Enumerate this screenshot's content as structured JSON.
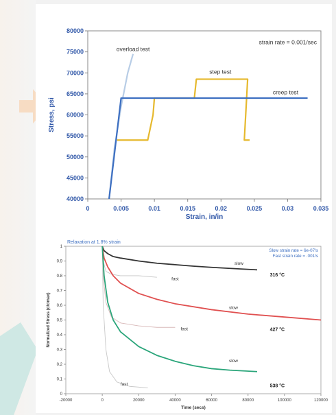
{
  "chart_data": [
    {
      "type": "line",
      "title": "",
      "xlabel": "Strain, in/in",
      "ylabel": "Stress, psi",
      "xlim": [
        0,
        0.035
      ],
      "ylim": [
        40000,
        80000
      ],
      "x_ticks": [
        "0",
        "0.005",
        "0.01",
        "0.015",
        "0.02",
        "0.025",
        "0.03",
        "0.035"
      ],
      "y_ticks": [
        "40000",
        "45000",
        "50000",
        "55000",
        "60000",
        "65000",
        "70000",
        "75000",
        "80000"
      ],
      "grid": false,
      "annotation": "strain rate = 0.001/sec",
      "series": [
        {
          "name": "overload test",
          "color": "#b8cde6",
          "x": [
            0.0032,
            0.004,
            0.005,
            0.006,
            0.0068
          ],
          "y": [
            40000,
            52000,
            62000,
            70000,
            74500
          ]
        },
        {
          "name": "step test",
          "color": "#e6b92e",
          "x": [
            0.0044,
            0.009,
            0.0098,
            0.01,
            0.016,
            0.0163,
            0.024,
            0.0235,
            0.0243
          ],
          "y": [
            54000,
            54000,
            60000,
            64000,
            64000,
            68500,
            68500,
            54000,
            54000
          ]
        },
        {
          "name": "creep test",
          "color": "#3d6fc1",
          "x": [
            0.0032,
            0.005,
            0.033
          ],
          "y": [
            40000,
            64000,
            64000
          ]
        }
      ]
    },
    {
      "type": "line",
      "title": "Relaxation at 1.8% strain",
      "xlabel": "Time (secs)",
      "ylabel": "Normalized Stress (σ/σmax)",
      "xlim": [
        -20000,
        120000
      ],
      "ylim": [
        0,
        1
      ],
      "x_ticks": [
        "-20000",
        "0",
        "20000",
        "40000",
        "60000",
        "80000",
        "100000",
        "120000"
      ],
      "y_ticks": [
        "0",
        "0.1",
        "0.2",
        "0.3",
        "0.4",
        "0.5",
        "0.6",
        "0.7",
        "0.8",
        "0.9",
        "1"
      ],
      "grid": false,
      "legend_text": [
        "Slow strain rate = 6e-07/s",
        "Fast strain rate = .001/s"
      ],
      "temperature_labels": [
        "316 °C",
        "427 °C",
        "538 °C"
      ],
      "series": [
        {
          "name": "slow",
          "temperature": "316 °C",
          "color": "#333333",
          "x": [
            0,
            1000,
            3000,
            6000,
            10000,
            20000,
            30000,
            40000,
            50000,
            60000,
            70000,
            85000
          ],
          "y": [
            1.0,
            0.97,
            0.95,
            0.93,
            0.92,
            0.9,
            0.885,
            0.875,
            0.865,
            0.857,
            0.85,
            0.84
          ]
        },
        {
          "name": "fast",
          "temperature": "316 °C",
          "color": "#c8c8c8",
          "x": [
            0,
            500,
            2000,
            5000,
            10000,
            20000,
            30000
          ],
          "y": [
            1.0,
            0.9,
            0.83,
            0.81,
            0.8,
            0.8,
            0.79
          ]
        },
        {
          "name": "slow",
          "temperature": "427 °C",
          "color": "#e05050",
          "x": [
            0,
            1000,
            3000,
            6000,
            10000,
            20000,
            30000,
            40000,
            60000,
            80000,
            100000,
            120000
          ],
          "y": [
            1.0,
            0.92,
            0.86,
            0.8,
            0.75,
            0.68,
            0.64,
            0.61,
            0.57,
            0.54,
            0.52,
            0.5
          ]
        },
        {
          "name": "fast",
          "temperature": "427 °C",
          "color": "#d8b8b8",
          "x": [
            0,
            500,
            2000,
            5000,
            10000,
            20000,
            30000,
            40000
          ],
          "y": [
            1.0,
            0.8,
            0.62,
            0.52,
            0.48,
            0.46,
            0.45,
            0.45
          ]
        },
        {
          "name": "slow",
          "temperature": "538 °C",
          "color": "#2aa57a",
          "x": [
            0,
            1000,
            3000,
            6000,
            10000,
            20000,
            30000,
            40000,
            50000,
            60000,
            70000,
            85000
          ],
          "y": [
            1.0,
            0.8,
            0.62,
            0.5,
            0.42,
            0.32,
            0.26,
            0.22,
            0.19,
            0.17,
            0.16,
            0.15
          ]
        },
        {
          "name": "fast",
          "temperature": "538 °C",
          "color": "#c8c8c8",
          "x": [
            0,
            500,
            2000,
            4000,
            8000,
            15000,
            25000
          ],
          "y": [
            1.0,
            0.6,
            0.3,
            0.15,
            0.08,
            0.05,
            0.04
          ]
        }
      ]
    }
  ]
}
